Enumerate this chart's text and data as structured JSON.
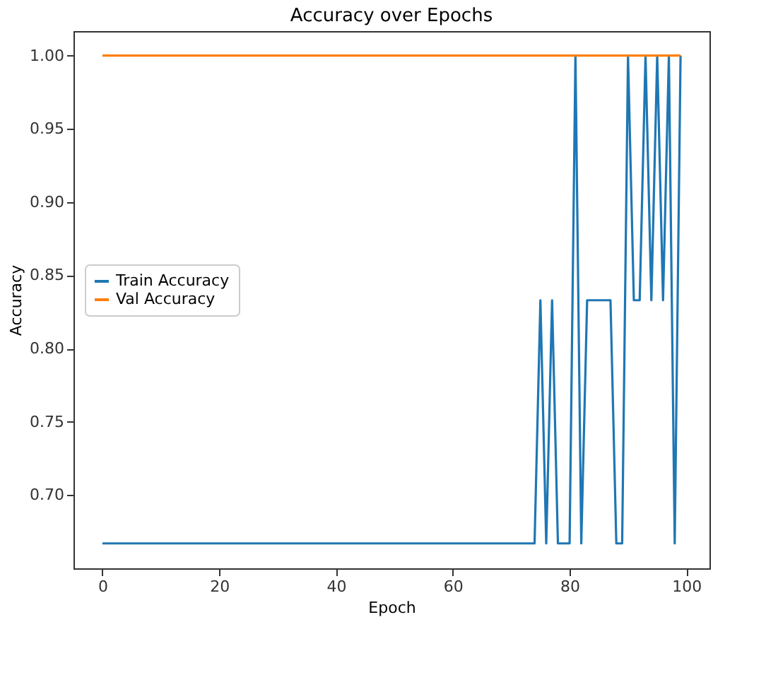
{
  "chart_data": {
    "type": "line",
    "title": "Accuracy over Epochs",
    "xlabel": "Epoch",
    "ylabel": "Accuracy",
    "x": [
      0,
      1,
      2,
      3,
      4,
      5,
      6,
      7,
      8,
      9,
      10,
      11,
      12,
      13,
      14,
      15,
      16,
      17,
      18,
      19,
      20,
      21,
      22,
      23,
      24,
      25,
      26,
      27,
      28,
      29,
      30,
      31,
      32,
      33,
      34,
      35,
      36,
      37,
      38,
      39,
      40,
      41,
      42,
      43,
      44,
      45,
      46,
      47,
      48,
      49,
      50,
      51,
      52,
      53,
      54,
      55,
      56,
      57,
      58,
      59,
      60,
      61,
      62,
      63,
      64,
      65,
      66,
      67,
      68,
      69,
      70,
      71,
      72,
      73,
      74,
      75,
      76,
      77,
      78,
      79,
      80,
      81,
      82,
      83,
      84,
      85,
      86,
      87,
      88,
      89,
      90,
      91,
      92,
      93,
      94,
      95,
      96,
      97,
      98,
      99
    ],
    "series": [
      {
        "name": "Train Accuracy",
        "color": "#1f77b4",
        "values": [
          0.667,
          0.667,
          0.667,
          0.667,
          0.667,
          0.667,
          0.667,
          0.667,
          0.667,
          0.667,
          0.667,
          0.667,
          0.667,
          0.667,
          0.667,
          0.667,
          0.667,
          0.667,
          0.667,
          0.667,
          0.667,
          0.667,
          0.667,
          0.667,
          0.667,
          0.667,
          0.667,
          0.667,
          0.667,
          0.667,
          0.667,
          0.667,
          0.667,
          0.667,
          0.667,
          0.667,
          0.667,
          0.667,
          0.667,
          0.667,
          0.667,
          0.667,
          0.667,
          0.667,
          0.667,
          0.667,
          0.667,
          0.667,
          0.667,
          0.667,
          0.667,
          0.667,
          0.667,
          0.667,
          0.667,
          0.667,
          0.667,
          0.667,
          0.667,
          0.667,
          0.667,
          0.667,
          0.667,
          0.667,
          0.667,
          0.667,
          0.667,
          0.667,
          0.667,
          0.667,
          0.667,
          0.667,
          0.667,
          0.667,
          0.667,
          0.833,
          0.667,
          0.833,
          0.667,
          0.667,
          0.667,
          1.0,
          0.667,
          0.833,
          0.833,
          0.833,
          0.833,
          0.833,
          0.667,
          0.667,
          1.0,
          0.833,
          0.833,
          1.0,
          0.833,
          1.0,
          0.833,
          1.0,
          0.667,
          1.0
        ]
      },
      {
        "name": "Val Accuracy",
        "color": "#ff7f0e",
        "values": [
          1.0,
          1.0,
          1.0,
          1.0,
          1.0,
          1.0,
          1.0,
          1.0,
          1.0,
          1.0,
          1.0,
          1.0,
          1.0,
          1.0,
          1.0,
          1.0,
          1.0,
          1.0,
          1.0,
          1.0,
          1.0,
          1.0,
          1.0,
          1.0,
          1.0,
          1.0,
          1.0,
          1.0,
          1.0,
          1.0,
          1.0,
          1.0,
          1.0,
          1.0,
          1.0,
          1.0,
          1.0,
          1.0,
          1.0,
          1.0,
          1.0,
          1.0,
          1.0,
          1.0,
          1.0,
          1.0,
          1.0,
          1.0,
          1.0,
          1.0,
          1.0,
          1.0,
          1.0,
          1.0,
          1.0,
          1.0,
          1.0,
          1.0,
          1.0,
          1.0,
          1.0,
          1.0,
          1.0,
          1.0,
          1.0,
          1.0,
          1.0,
          1.0,
          1.0,
          1.0,
          1.0,
          1.0,
          1.0,
          1.0,
          1.0,
          1.0,
          1.0,
          1.0,
          1.0,
          1.0,
          1.0,
          1.0,
          1.0,
          1.0,
          1.0,
          1.0,
          1.0,
          1.0,
          1.0,
          1.0,
          1.0,
          1.0,
          1.0,
          1.0,
          1.0,
          1.0,
          1.0,
          1.0,
          1.0,
          1.0
        ]
      }
    ],
    "xlim": [
      -4.95,
      103.95
    ],
    "xticks": [
      0,
      20,
      40,
      60,
      80,
      100
    ],
    "ylim": [
      0.65,
      1.0167
    ],
    "yticks": [
      {
        "value": 0.7,
        "label": "0.70"
      },
      {
        "value": 0.75,
        "label": "0.75"
      },
      {
        "value": 0.8,
        "label": "0.80"
      },
      {
        "value": 0.85,
        "label": "0.85"
      },
      {
        "value": 0.9,
        "label": "0.90"
      },
      {
        "value": 0.95,
        "label": "0.95"
      },
      {
        "value": 1.0,
        "label": "1.00"
      }
    ],
    "legend": "center left",
    "grid": false,
    "marker": "none",
    "line_style": "solid"
  }
}
